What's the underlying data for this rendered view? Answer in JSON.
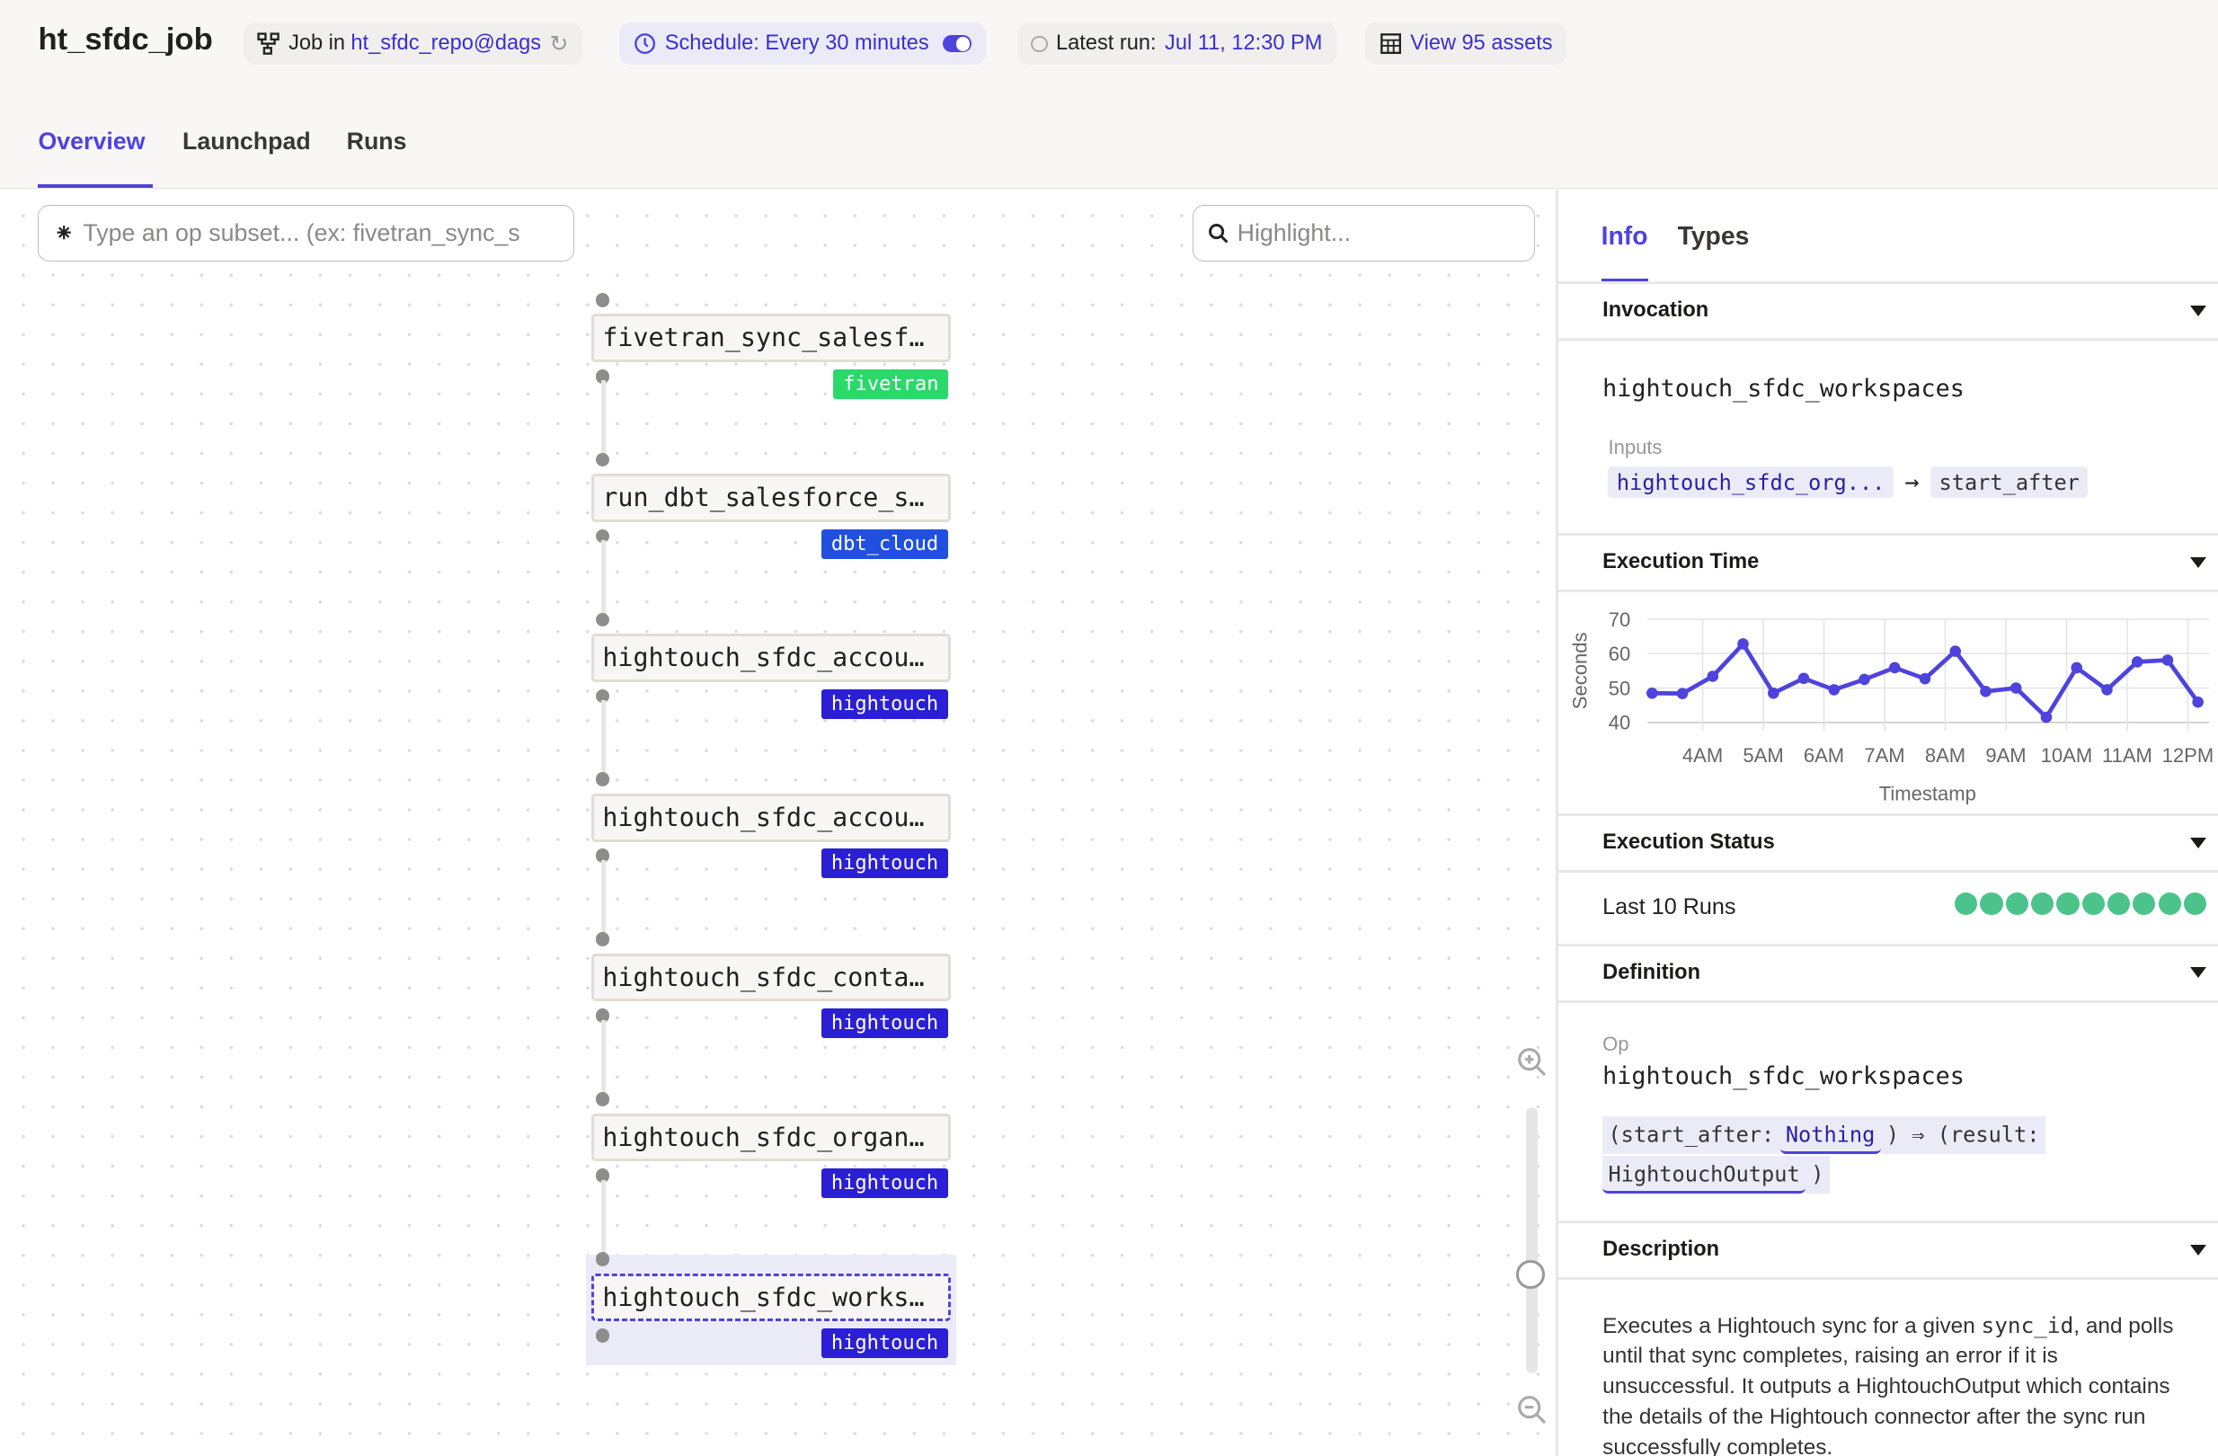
{
  "header": {
    "title": "ht_sfdc_job",
    "job_prefix": "Job in",
    "job_repo": "ht_sfdc_repo@dags",
    "schedule": "Schedule: Every 30 minutes",
    "schedule_enabled": true,
    "latest_run_label": "Latest run:",
    "latest_run_value": "Jul 11, 12:30 PM",
    "view_assets": "View 95 assets",
    "tabs": [
      "Overview",
      "Launchpad",
      "Runs"
    ],
    "active_tab": "Overview"
  },
  "graph": {
    "op_subset_placeholder": "Type an op subset... (ex: fivetran_sync_s",
    "highlight_placeholder": "Highlight...",
    "nodes": [
      {
        "label": "fivetran_sync_salesf…",
        "tag": "fivetran",
        "tag_color": "#2bd96b"
      },
      {
        "label": "run_dbt_salesforce_s…",
        "tag": "dbt_cloud",
        "tag_color": "#2150e0"
      },
      {
        "label": "hightouch_sfdc_accou…",
        "tag": "hightouch",
        "tag_color": "#2b1fd6"
      },
      {
        "label": "hightouch_sfdc_accou…",
        "tag": "hightouch",
        "tag_color": "#2b1fd6"
      },
      {
        "label": "hightouch_sfdc_conta…",
        "tag": "hightouch",
        "tag_color": "#2b1fd6"
      },
      {
        "label": "hightouch_sfdc_organ…",
        "tag": "hightouch",
        "tag_color": "#2b1fd6"
      },
      {
        "label": "hightouch_sfdc_works…",
        "tag": "hightouch",
        "tag_color": "#2b1fd6",
        "selected": true
      }
    ]
  },
  "sidebar": {
    "tabs": [
      "Info",
      "Types"
    ],
    "active_tab": "Info",
    "invocation": {
      "heading": "Invocation",
      "name": "hightouch_sfdc_workspaces",
      "inputs_label": "Inputs",
      "input_from": "hightouch_sfdc_org...",
      "input_to": "start_after"
    },
    "execution_time": {
      "heading": "Execution Time"
    },
    "execution_status": {
      "heading": "Execution Status",
      "label": "Last 10 Runs",
      "runs": [
        "success",
        "success",
        "success",
        "success",
        "success",
        "success",
        "success",
        "success",
        "success",
        "success"
      ],
      "success_color": "#4cc38a"
    },
    "definition": {
      "heading": "Definition",
      "op_label": "Op",
      "op_name": "hightouch_sfdc_workspaces",
      "sig_open": "(start_after:",
      "sig_input_type": "Nothing",
      "sig_mid": ") ⇒ (result:",
      "sig_output_type": "HightouchOutput",
      "sig_close": ")"
    },
    "description": {
      "heading": "Description",
      "text_1": "Executes a Hightouch sync for a given ",
      "code": "sync_id",
      "text_2": ", and polls until that sync completes, raising an error if it is unsuccessful. It outputs a HightouchOutput which contains the details of the Hightouch connector after the sync run successfully completes."
    }
  },
  "chart_data": {
    "type": "line",
    "xlabel": "Timestamp",
    "ylabel": "Seconds",
    "ylim": [
      40,
      70
    ],
    "yticks": [
      40,
      50,
      60,
      70
    ],
    "xticks": [
      "4AM",
      "5AM",
      "6AM",
      "7AM",
      "8AM",
      "9AM",
      "10AM",
      "11AM",
      "12PM"
    ],
    "grid": true,
    "color": "#4f43dd",
    "x": [
      "03:10",
      "03:40",
      "04:10",
      "04:40",
      "05:10",
      "05:40",
      "06:10",
      "06:40",
      "07:10",
      "07:40",
      "08:10",
      "08:40",
      "09:10",
      "09:40",
      "10:10",
      "10:40",
      "11:10",
      "11:40",
      "12:10"
    ],
    "values": [
      48.5,
      48.4,
      53.4,
      62.8,
      48.5,
      52.8,
      49.5,
      52.5,
      55.9,
      52.7,
      60.7,
      49.0,
      50.0,
      41.5,
      55.9,
      49.5,
      57.6,
      58.1,
      45.9
    ]
  }
}
